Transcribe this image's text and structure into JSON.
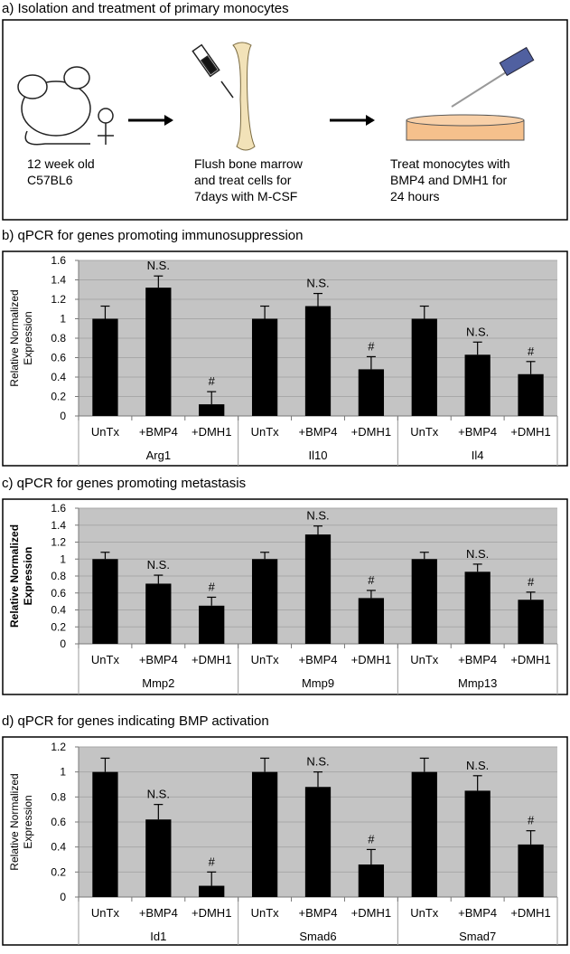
{
  "panel_a": {
    "title": "a) Isolation and treatment of primary monocytes",
    "steps": [
      {
        "lines": [
          "12 week old",
          "C57BL6"
        ]
      },
      {
        "lines": [
          "Flush bone marrow",
          "and treat cells for",
          "7days with M-CSF"
        ]
      },
      {
        "lines": [
          "Treat monocytes with",
          "BMP4 and DMH1 for",
          "24 hours"
        ]
      }
    ]
  },
  "chart_data": [
    {
      "type": "bar",
      "title": "b) qPCR for genes promoting immunosuppression",
      "ylabel": [
        "Relative Normalized",
        "Expression"
      ],
      "categories": [
        "UnTx",
        "+BMP4",
        "+DMH1",
        "UnTx",
        "+BMP4",
        "+DMH1",
        "UnTx",
        "+BMP4",
        "+DMH1"
      ],
      "groups": [
        "Arg1",
        "Il10",
        "Il4"
      ],
      "values": [
        1.0,
        1.32,
        0.12,
        1.0,
        1.13,
        0.48,
        1.0,
        0.63,
        0.43
      ],
      "errors": [
        0.13,
        0.12,
        0.13,
        0.13,
        0.13,
        0.13,
        0.13,
        0.13,
        0.13
      ],
      "annotations": [
        null,
        "N.S.",
        "#",
        null,
        "N.S.",
        "#",
        null,
        "N.S.",
        "#"
      ],
      "color": "#000000",
      "ylim": [
        0,
        1.6
      ],
      "yticks": [
        0,
        0.2,
        0.4,
        0.6,
        0.8,
        1,
        1.2,
        1.4,
        1.6
      ],
      "grid": true
    },
    {
      "type": "bar",
      "title": "c) qPCR for genes promoting metastasis",
      "ylabel": [
        "Relative Normalized",
        "Expression"
      ],
      "categories": [
        "UnTx",
        "+BMP4",
        "+DMH1",
        "UnTx",
        "+BMP4",
        "+DMH1",
        "UnTx",
        "+BMP4",
        "+DMH1"
      ],
      "groups": [
        "Mmp2",
        "Mmp9",
        "Mmp13"
      ],
      "values": [
        1.0,
        0.71,
        0.45,
        1.0,
        1.29,
        0.54,
        1.0,
        0.85,
        0.52
      ],
      "errors": [
        0.08,
        0.1,
        0.1,
        0.08,
        0.1,
        0.09,
        0.08,
        0.09,
        0.09
      ],
      "annotations": [
        null,
        "N.S.",
        "#",
        null,
        "N.S.",
        "#",
        null,
        "N.S.",
        "#"
      ],
      "color": "#000000",
      "ylim": [
        0,
        1.6
      ],
      "yticks": [
        0,
        0.2,
        0.4,
        0.6,
        0.8,
        1,
        1.2,
        1.4,
        1.6
      ],
      "grid": true
    },
    {
      "type": "bar",
      "title": "d) qPCR for genes indicating BMP activation",
      "ylabel": [
        "Relative Normalized",
        "Expression"
      ],
      "categories": [
        "UnTx",
        "+BMP4",
        "+DMH1",
        "UnTx",
        "+BMP4",
        "+DMH1",
        "UnTx",
        "+BMP4",
        "+DMH1"
      ],
      "groups": [
        "Id1",
        "Smad6",
        "Smad7"
      ],
      "values": [
        1.0,
        0.62,
        0.09,
        1.0,
        0.88,
        0.26,
        1.0,
        0.85,
        0.42
      ],
      "errors": [
        0.11,
        0.12,
        0.11,
        0.11,
        0.12,
        0.12,
        0.11,
        0.12,
        0.11
      ],
      "annotations": [
        null,
        "N.S.",
        "#",
        null,
        "N.S.",
        "#",
        null,
        "N.S.",
        "#"
      ],
      "color": "#000000",
      "ylim": [
        0,
        1.2
      ],
      "yticks": [
        0,
        0.2,
        0.4,
        0.6,
        0.8,
        1,
        1.2
      ],
      "grid": true
    }
  ]
}
